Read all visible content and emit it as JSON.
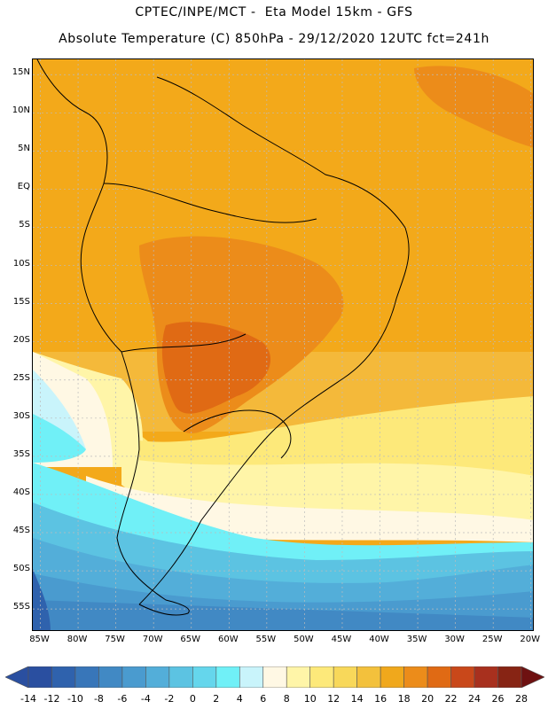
{
  "header": {
    "line1": "CPTEC/INPE/MCT -  Eta Model 15km - GFS",
    "line2": "Absolute Temperature (C) 850hPa - 29/12/2020 12UTC fct=241h"
  },
  "map": {
    "lat_labels": [
      "15N",
      "10N",
      "5N",
      "EQ",
      "5S",
      "10S",
      "15S",
      "20S",
      "25S",
      "30S",
      "35S",
      "40S",
      "45S",
      "50S",
      "55S"
    ],
    "lat_values": [
      15,
      10,
      5,
      0,
      -5,
      -10,
      -15,
      -20,
      -25,
      -30,
      -35,
      -40,
      -45,
      -50,
      -55
    ],
    "lon_labels": [
      "85W",
      "80W",
      "75W",
      "70W",
      "65W",
      "60W",
      "55W",
      "50W",
      "45W",
      "40W",
      "35W",
      "30W",
      "25W",
      "20W"
    ],
    "lon_values": [
      -85,
      -80,
      -75,
      -70,
      -65,
      -60,
      -55,
      -50,
      -45,
      -40,
      -35,
      -30,
      -25,
      -20
    ],
    "lat_range": [
      -58,
      17
    ],
    "lon_range": [
      -86,
      -19.5
    ]
  },
  "colorbar": {
    "labels": [
      "-14",
      "-12",
      "-10",
      "-8",
      "-6",
      "-4",
      "-2",
      "0",
      "2",
      "4",
      "6",
      "8",
      "10",
      "12",
      "14",
      "16",
      "18",
      "20",
      "22",
      "24",
      "26",
      "28"
    ],
    "colors": [
      "#2a4fa0",
      "#2a4fa0",
      "#2f62ad",
      "#3876b9",
      "#4189c4",
      "#4a9bcf",
      "#53aed9",
      "#5cc3e2",
      "#65d6ec",
      "#70f0f7",
      "#c9f4fb",
      "#fff8e4",
      "#fff5a8",
      "#fde97a",
      "#f8d85a",
      "#f3c13c",
      "#f0a81c",
      "#ec8c1a",
      "#e06a14",
      "#c9481a",
      "#a8301e",
      "#872414",
      "#6e1111"
    ]
  }
}
